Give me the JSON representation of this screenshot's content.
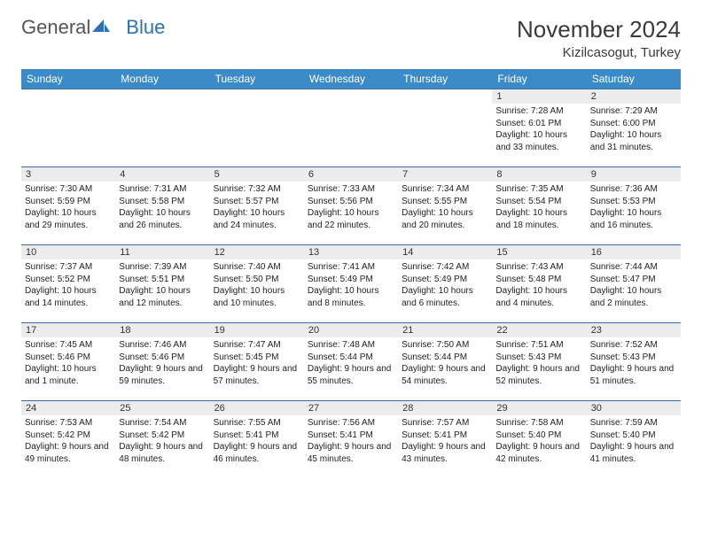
{
  "logo": {
    "part1": "General",
    "part2": "Blue"
  },
  "title": "November 2024",
  "location": "Kizilcasogut, Turkey",
  "colors": {
    "header_bg": "#3b8bc9",
    "header_text": "#ffffff",
    "day_border": "#3b6fa0",
    "daynum_bg": "#ececec",
    "logo_blue": "#2c71b8"
  },
  "days_of_week": [
    "Sunday",
    "Monday",
    "Tuesday",
    "Wednesday",
    "Thursday",
    "Friday",
    "Saturday"
  ],
  "weeks": [
    [
      {
        "n": "",
        "sr": "",
        "ss": "",
        "dl": ""
      },
      {
        "n": "",
        "sr": "",
        "ss": "",
        "dl": ""
      },
      {
        "n": "",
        "sr": "",
        "ss": "",
        "dl": ""
      },
      {
        "n": "",
        "sr": "",
        "ss": "",
        "dl": ""
      },
      {
        "n": "",
        "sr": "",
        "ss": "",
        "dl": ""
      },
      {
        "n": "1",
        "sr": "Sunrise: 7:28 AM",
        "ss": "Sunset: 6:01 PM",
        "dl": "Daylight: 10 hours and 33 minutes."
      },
      {
        "n": "2",
        "sr": "Sunrise: 7:29 AM",
        "ss": "Sunset: 6:00 PM",
        "dl": "Daylight: 10 hours and 31 minutes."
      }
    ],
    [
      {
        "n": "3",
        "sr": "Sunrise: 7:30 AM",
        "ss": "Sunset: 5:59 PM",
        "dl": "Daylight: 10 hours and 29 minutes."
      },
      {
        "n": "4",
        "sr": "Sunrise: 7:31 AM",
        "ss": "Sunset: 5:58 PM",
        "dl": "Daylight: 10 hours and 26 minutes."
      },
      {
        "n": "5",
        "sr": "Sunrise: 7:32 AM",
        "ss": "Sunset: 5:57 PM",
        "dl": "Daylight: 10 hours and 24 minutes."
      },
      {
        "n": "6",
        "sr": "Sunrise: 7:33 AM",
        "ss": "Sunset: 5:56 PM",
        "dl": "Daylight: 10 hours and 22 minutes."
      },
      {
        "n": "7",
        "sr": "Sunrise: 7:34 AM",
        "ss": "Sunset: 5:55 PM",
        "dl": "Daylight: 10 hours and 20 minutes."
      },
      {
        "n": "8",
        "sr": "Sunrise: 7:35 AM",
        "ss": "Sunset: 5:54 PM",
        "dl": "Daylight: 10 hours and 18 minutes."
      },
      {
        "n": "9",
        "sr": "Sunrise: 7:36 AM",
        "ss": "Sunset: 5:53 PM",
        "dl": "Daylight: 10 hours and 16 minutes."
      }
    ],
    [
      {
        "n": "10",
        "sr": "Sunrise: 7:37 AM",
        "ss": "Sunset: 5:52 PM",
        "dl": "Daylight: 10 hours and 14 minutes."
      },
      {
        "n": "11",
        "sr": "Sunrise: 7:39 AM",
        "ss": "Sunset: 5:51 PM",
        "dl": "Daylight: 10 hours and 12 minutes."
      },
      {
        "n": "12",
        "sr": "Sunrise: 7:40 AM",
        "ss": "Sunset: 5:50 PM",
        "dl": "Daylight: 10 hours and 10 minutes."
      },
      {
        "n": "13",
        "sr": "Sunrise: 7:41 AM",
        "ss": "Sunset: 5:49 PM",
        "dl": "Daylight: 10 hours and 8 minutes."
      },
      {
        "n": "14",
        "sr": "Sunrise: 7:42 AM",
        "ss": "Sunset: 5:49 PM",
        "dl": "Daylight: 10 hours and 6 minutes."
      },
      {
        "n": "15",
        "sr": "Sunrise: 7:43 AM",
        "ss": "Sunset: 5:48 PM",
        "dl": "Daylight: 10 hours and 4 minutes."
      },
      {
        "n": "16",
        "sr": "Sunrise: 7:44 AM",
        "ss": "Sunset: 5:47 PM",
        "dl": "Daylight: 10 hours and 2 minutes."
      }
    ],
    [
      {
        "n": "17",
        "sr": "Sunrise: 7:45 AM",
        "ss": "Sunset: 5:46 PM",
        "dl": "Daylight: 10 hours and 1 minute."
      },
      {
        "n": "18",
        "sr": "Sunrise: 7:46 AM",
        "ss": "Sunset: 5:46 PM",
        "dl": "Daylight: 9 hours and 59 minutes."
      },
      {
        "n": "19",
        "sr": "Sunrise: 7:47 AM",
        "ss": "Sunset: 5:45 PM",
        "dl": "Daylight: 9 hours and 57 minutes."
      },
      {
        "n": "20",
        "sr": "Sunrise: 7:48 AM",
        "ss": "Sunset: 5:44 PM",
        "dl": "Daylight: 9 hours and 55 minutes."
      },
      {
        "n": "21",
        "sr": "Sunrise: 7:50 AM",
        "ss": "Sunset: 5:44 PM",
        "dl": "Daylight: 9 hours and 54 minutes."
      },
      {
        "n": "22",
        "sr": "Sunrise: 7:51 AM",
        "ss": "Sunset: 5:43 PM",
        "dl": "Daylight: 9 hours and 52 minutes."
      },
      {
        "n": "23",
        "sr": "Sunrise: 7:52 AM",
        "ss": "Sunset: 5:43 PM",
        "dl": "Daylight: 9 hours and 51 minutes."
      }
    ],
    [
      {
        "n": "24",
        "sr": "Sunrise: 7:53 AM",
        "ss": "Sunset: 5:42 PM",
        "dl": "Daylight: 9 hours and 49 minutes."
      },
      {
        "n": "25",
        "sr": "Sunrise: 7:54 AM",
        "ss": "Sunset: 5:42 PM",
        "dl": "Daylight: 9 hours and 48 minutes."
      },
      {
        "n": "26",
        "sr": "Sunrise: 7:55 AM",
        "ss": "Sunset: 5:41 PM",
        "dl": "Daylight: 9 hours and 46 minutes."
      },
      {
        "n": "27",
        "sr": "Sunrise: 7:56 AM",
        "ss": "Sunset: 5:41 PM",
        "dl": "Daylight: 9 hours and 45 minutes."
      },
      {
        "n": "28",
        "sr": "Sunrise: 7:57 AM",
        "ss": "Sunset: 5:41 PM",
        "dl": "Daylight: 9 hours and 43 minutes."
      },
      {
        "n": "29",
        "sr": "Sunrise: 7:58 AM",
        "ss": "Sunset: 5:40 PM",
        "dl": "Daylight: 9 hours and 42 minutes."
      },
      {
        "n": "30",
        "sr": "Sunrise: 7:59 AM",
        "ss": "Sunset: 5:40 PM",
        "dl": "Daylight: 9 hours and 41 minutes."
      }
    ]
  ]
}
